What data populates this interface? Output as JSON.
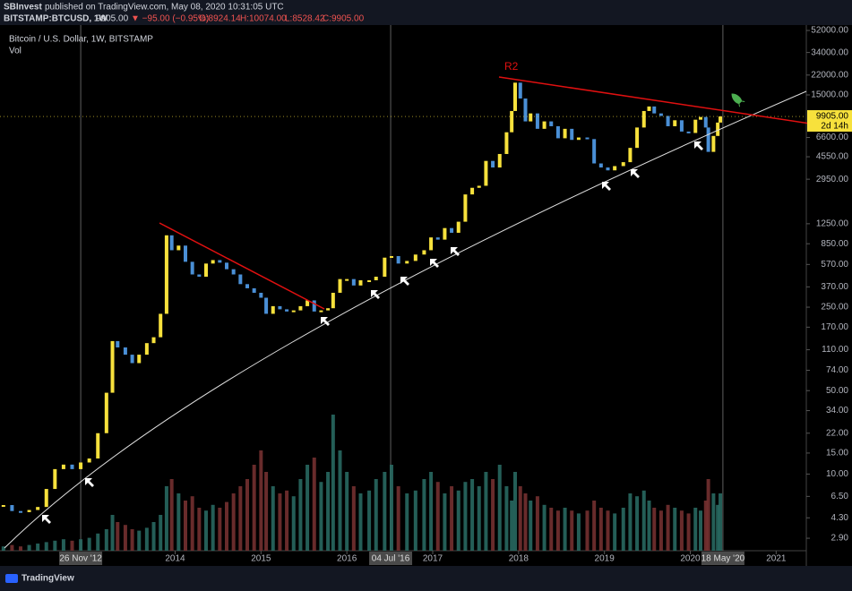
{
  "header": {
    "author": "SBInvest",
    "published": "published on TradingView.com, May 08, 2020 10:31:05 UTC",
    "symbol": "BITSTAMP:BTCUSD, 1W",
    "price": "9905.00",
    "change": "▼ −95.00 (−0.95%)",
    "open": "O:8924.14",
    "high": "H:10074.00",
    "low": "L:8528.42",
    "close": "C:9905.00"
  },
  "footer": {
    "brand": "TradingView"
  },
  "chart_data": {
    "type": "candlestick",
    "log_scale": true,
    "annotations": [
      "R2"
    ],
    "countdown": "2d 14h",
    "last_price": {
      "value": 9905,
      "label": "9905.00"
    },
    "x": [
      2012.0,
      2012.1,
      2012.2,
      2012.3,
      2012.4,
      2012.5,
      2012.6,
      2012.7,
      2012.8,
      2012.9,
      2013.0,
      2013.1,
      2013.2,
      2013.27,
      2013.33,
      2013.42,
      2013.5,
      2013.58,
      2013.67,
      2013.75,
      2013.83,
      2013.9,
      2013.96,
      2014.04,
      2014.12,
      2014.2,
      2014.28,
      2014.36,
      2014.44,
      2014.52,
      2014.6,
      2014.68,
      2014.76,
      2014.84,
      2014.92,
      2015.0,
      2015.06,
      2015.14,
      2015.22,
      2015.3,
      2015.38,
      2015.46,
      2015.54,
      2015.62,
      2015.7,
      2015.78,
      2015.84,
      2015.92,
      2016.0,
      2016.08,
      2016.16,
      2016.26,
      2016.34,
      2016.44,
      2016.52,
      2016.6,
      2016.7,
      2016.8,
      2016.9,
      2016.98,
      2017.06,
      2017.14,
      2017.22,
      2017.3,
      2017.38,
      2017.46,
      2017.54,
      2017.62,
      2017.7,
      2017.78,
      2017.86,
      2017.92,
      2017.96,
      2018.02,
      2018.08,
      2018.14,
      2018.22,
      2018.3,
      2018.38,
      2018.46,
      2018.54,
      2018.62,
      2018.7,
      2018.8,
      2018.88,
      2018.96,
      2019.04,
      2019.12,
      2019.22,
      2019.3,
      2019.38,
      2019.46,
      2019.52,
      2019.58,
      2019.66,
      2019.74,
      2019.82,
      2019.9,
      2019.98,
      2020.06,
      2020.12,
      2020.18,
      2020.21,
      2020.27,
      2020.32,
      2020.35
    ],
    "series": [
      {
        "name": "Bitcoin / U.S. Dollar, 1W, BITSTAMP",
        "color": "#f7e13c",
        "down_color": "#4a8fd6",
        "values": [
          5.5,
          4.9,
          4.8,
          5.0,
          5.3,
          7.5,
          11,
          12,
          11,
          12.5,
          13.5,
          22,
          48,
          130,
          115,
          100,
          85,
          100,
          125,
          140,
          220,
          1000,
          750,
          820,
          600,
          470,
          450,
          580,
          620,
          590,
          520,
          470,
          390,
          360,
          330,
          300,
          220,
          255,
          240,
          230,
          235,
          255,
          285,
          230,
          235,
          245,
          330,
          430,
          430,
          380,
          420,
          420,
          450,
          650,
          670,
          580,
          610,
          690,
          750,
          960,
          920,
          1150,
          1050,
          1300,
          2200,
          2500,
          2600,
          4200,
          3700,
          4800,
          7300,
          11000,
          19000,
          14000,
          9000,
          10500,
          7800,
          9000,
          8200,
          6500,
          7800,
          6300,
          6600,
          6400,
          4000,
          3700,
          3500,
          3800,
          4100,
          5400,
          8000,
          11000,
          12000,
          10500,
          10000,
          8200,
          9200,
          7400,
          7200,
          9300,
          9800,
          8000,
          5000,
          6800,
          8800,
          9905
        ]
      },
      {
        "name": "Vol",
        "axis": "y2",
        "color": "#2a6f66",
        "down_color": "#7a3232",
        "values": [
          3,
          4,
          3,
          4,
          5,
          6,
          7,
          8,
          7,
          8,
          9,
          12,
          15,
          25,
          20,
          18,
          15,
          14,
          16,
          20,
          25,
          45,
          50,
          40,
          35,
          38,
          30,
          28,
          32,
          30,
          34,
          40,
          45,
          50,
          60,
          70,
          55,
          45,
          40,
          42,
          38,
          50,
          60,
          65,
          48,
          55,
          95,
          70,
          55,
          45,
          40,
          42,
          50,
          55,
          60,
          45,
          40,
          42,
          50,
          55,
          48,
          40,
          45,
          42,
          48,
          50,
          45,
          55,
          50,
          60,
          45,
          35,
          55,
          45,
          40,
          35,
          38,
          32,
          30,
          28,
          30,
          28,
          26,
          28,
          35,
          30,
          28,
          26,
          30,
          40,
          38,
          42,
          35,
          30,
          28,
          32,
          30,
          28,
          26,
          30,
          28,
          35,
          50,
          40,
          32,
          40
        ]
      }
    ],
    "xlim": [
      2011.96,
      2021.32
    ],
    "xticks": [
      2014,
      2015,
      2016,
      2017,
      2018,
      2019,
      2020,
      2021
    ],
    "xmarkers": [
      {
        "value": 2012.9,
        "label": "26 Nov '12"
      },
      {
        "value": 2016.51,
        "label": "04 Jul '16"
      },
      {
        "value": 2020.38,
        "label": "18 May '20"
      }
    ],
    "ylim": [
      2.28,
      57700
    ],
    "yticks": [
      {
        "value": 52000,
        "label": "52000.00"
      },
      {
        "value": 34000,
        "label": "34000.00"
      },
      {
        "value": 22000,
        "label": "22000.00"
      },
      {
        "value": 15000,
        "label": "15000.00"
      },
      {
        "value": 6600,
        "label": "6600.00"
      },
      {
        "value": 4550,
        "label": "4550.00"
      },
      {
        "value": 2950,
        "label": "2950.00"
      },
      {
        "value": 1250,
        "label": "1250.00"
      },
      {
        "value": 850,
        "label": "850.00"
      },
      {
        "value": 570,
        "label": "570.00"
      },
      {
        "value": 370,
        "label": "370.00"
      },
      {
        "value": 250,
        "label": "250.00"
      },
      {
        "value": 170,
        "label": "170.00"
      },
      {
        "value": 110,
        "label": "110.00"
      },
      {
        "value": 74,
        "label": "74.00"
      },
      {
        "value": 50,
        "label": "50.00"
      },
      {
        "value": 34,
        "label": "34.00"
      },
      {
        "value": 22,
        "label": "22.00"
      },
      {
        "value": 15,
        "label": "15.00"
      },
      {
        "value": 10,
        "label": "10.00"
      },
      {
        "value": 6.5,
        "label": "6.50"
      },
      {
        "value": 4.3,
        "label": "4.30"
      },
      {
        "value": 2.9,
        "label": "2.90"
      }
    ],
    "y2lim": [
      0,
      100
    ]
  }
}
